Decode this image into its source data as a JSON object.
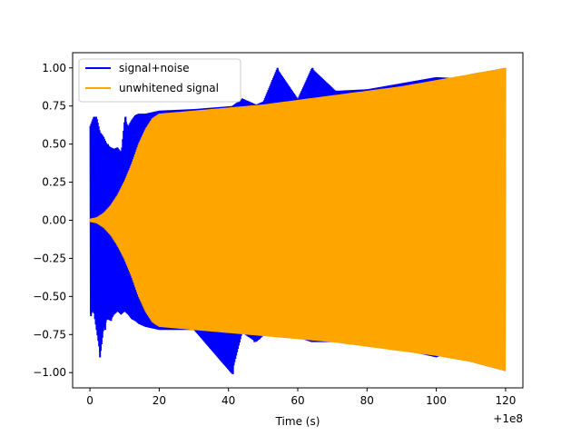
{
  "chart_data": {
    "type": "line",
    "title": "",
    "xlabel": "Time (s)",
    "ylabel": "",
    "x_offset_label": "+1e8",
    "xlim": [
      -5,
      125
    ],
    "ylim": [
      -1.1,
      1.1
    ],
    "x_ticks": [
      {
        "value": 0,
        "label": "0"
      },
      {
        "value": 20,
        "label": "20"
      },
      {
        "value": 40,
        "label": "40"
      },
      {
        "value": 60,
        "label": "60"
      },
      {
        "value": 80,
        "label": "80"
      },
      {
        "value": 100,
        "label": "100"
      },
      {
        "value": 120,
        "label": "120"
      }
    ],
    "y_ticks": [
      {
        "value": 1.0,
        "label": "1.00"
      },
      {
        "value": 0.75,
        "label": "0.75"
      },
      {
        "value": 0.5,
        "label": "0.50"
      },
      {
        "value": 0.25,
        "label": "0.25"
      },
      {
        "value": 0.0,
        "label": "0.00"
      },
      {
        "value": -0.25,
        "label": "−0.25"
      },
      {
        "value": -0.5,
        "label": "−0.50"
      },
      {
        "value": -0.75,
        "label": "−0.75"
      },
      {
        "value": -1.0,
        "label": "−1.00"
      }
    ],
    "grid": false,
    "legend_position": "top-left",
    "series": [
      {
        "name": "signal+noise",
        "color": "#0000ff",
        "envelope": [
          {
            "x": 0,
            "lo": -0.62,
            "hi": 0.62
          },
          {
            "x": 1,
            "lo": -0.6,
            "hi": 0.68
          },
          {
            "x": 2,
            "lo": -0.75,
            "hi": 0.68
          },
          {
            "x": 3,
            "lo": -0.9,
            "hi": 0.58
          },
          {
            "x": 4,
            "lo": -0.72,
            "hi": 0.55
          },
          {
            "x": 5,
            "lo": -0.65,
            "hi": 0.5
          },
          {
            "x": 6,
            "lo": -0.66,
            "hi": 0.48
          },
          {
            "x": 7,
            "lo": -0.62,
            "hi": 0.47
          },
          {
            "x": 8,
            "lo": -0.6,
            "hi": 0.48
          },
          {
            "x": 9,
            "lo": -0.62,
            "hi": 0.45
          },
          {
            "x": 10,
            "lo": -0.6,
            "hi": 0.68
          },
          {
            "x": 11,
            "lo": -0.62,
            "hi": 0.62
          },
          {
            "x": 12,
            "lo": -0.65,
            "hi": 0.66
          },
          {
            "x": 13,
            "lo": -0.66,
            "hi": 0.69
          },
          {
            "x": 14,
            "lo": -0.68,
            "hi": 0.7
          },
          {
            "x": 16,
            "lo": -0.7,
            "hi": 0.7
          },
          {
            "x": 20,
            "lo": -0.72,
            "hi": 0.72
          },
          {
            "x": 30,
            "lo": -0.72,
            "hi": 0.73
          },
          {
            "x": 41,
            "lo": -1.01,
            "hi": 0.75
          },
          {
            "x": 44,
            "lo": -0.74,
            "hi": 0.8
          },
          {
            "x": 48,
            "lo": -0.8,
            "hi": 0.76
          },
          {
            "x": 50,
            "lo": -0.76,
            "hi": 0.78
          },
          {
            "x": 54,
            "lo": -0.75,
            "hi": 1.0
          },
          {
            "x": 60,
            "lo": -0.77,
            "hi": 0.8
          },
          {
            "x": 64,
            "lo": -0.8,
            "hi": 1.0
          },
          {
            "x": 71,
            "lo": -0.8,
            "hi": 0.85
          },
          {
            "x": 80,
            "lo": -0.82,
            "hi": 0.86
          },
          {
            "x": 90,
            "lo": -0.85,
            "hi": 0.9
          },
          {
            "x": 100,
            "lo": -0.9,
            "hi": 0.94
          },
          {
            "x": 108,
            "lo": -0.84,
            "hi": 0.93
          },
          {
            "x": 110,
            "lo": -0.93,
            "hi": 0.96
          },
          {
            "x": 120,
            "lo": -0.99,
            "hi": 1.0
          }
        ]
      },
      {
        "name": "unwhitened signal",
        "color": "#ffa500",
        "envelope": [
          {
            "x": 0,
            "lo": -0.01,
            "hi": 0.01
          },
          {
            "x": 2,
            "lo": -0.02,
            "hi": 0.02
          },
          {
            "x": 4,
            "lo": -0.05,
            "hi": 0.05
          },
          {
            "x": 6,
            "lo": -0.1,
            "hi": 0.1
          },
          {
            "x": 8,
            "lo": -0.17,
            "hi": 0.17
          },
          {
            "x": 10,
            "lo": -0.26,
            "hi": 0.26
          },
          {
            "x": 12,
            "lo": -0.37,
            "hi": 0.37
          },
          {
            "x": 14,
            "lo": -0.5,
            "hi": 0.5
          },
          {
            "x": 16,
            "lo": -0.6,
            "hi": 0.6
          },
          {
            "x": 18,
            "lo": -0.67,
            "hi": 0.67
          },
          {
            "x": 20,
            "lo": -0.7,
            "hi": 0.7
          },
          {
            "x": 30,
            "lo": -0.72,
            "hi": 0.72
          },
          {
            "x": 40,
            "lo": -0.74,
            "hi": 0.74
          },
          {
            "x": 50,
            "lo": -0.76,
            "hi": 0.76
          },
          {
            "x": 60,
            "lo": -0.78,
            "hi": 0.79
          },
          {
            "x": 70,
            "lo": -0.8,
            "hi": 0.82
          },
          {
            "x": 80,
            "lo": -0.83,
            "hi": 0.85
          },
          {
            "x": 90,
            "lo": -0.86,
            "hi": 0.88
          },
          {
            "x": 100,
            "lo": -0.89,
            "hi": 0.92
          },
          {
            "x": 110,
            "lo": -0.93,
            "hi": 0.96
          },
          {
            "x": 120,
            "lo": -0.99,
            "hi": 1.0
          }
        ]
      }
    ],
    "noise_spikes": [
      {
        "x": 0.3,
        "lo": -0.63,
        "hi": 0.52
      },
      {
        "x": 0.8,
        "lo": -0.5,
        "hi": 0.63
      },
      {
        "x": 1.3,
        "lo": -0.45,
        "hi": 0.68
      },
      {
        "x": 2.0,
        "lo": -0.55,
        "hi": 0.6
      },
      {
        "x": 2.9,
        "lo": -0.9,
        "hi": 0.5
      },
      {
        "x": 3.6,
        "lo": -0.55,
        "hi": 0.46
      },
      {
        "x": 4.4,
        "lo": -0.72,
        "hi": 0.42
      },
      {
        "x": 5.2,
        "lo": -0.5,
        "hi": 0.5
      },
      {
        "x": 6.1,
        "lo": -0.66,
        "hi": 0.4
      },
      {
        "x": 7.0,
        "lo": -0.45,
        "hi": 0.47
      },
      {
        "x": 7.8,
        "lo": -0.55,
        "hi": 0.38
      },
      {
        "x": 8.7,
        "lo": -0.6,
        "hi": 0.35
      },
      {
        "x": 9.5,
        "lo": -0.5,
        "hi": 0.45
      },
      {
        "x": 10.3,
        "lo": -0.55,
        "hi": 0.68
      },
      {
        "x": 11.4,
        "lo": -0.58,
        "hi": 0.55
      },
      {
        "x": 12.3,
        "lo": -0.62,
        "hi": 0.62
      },
      {
        "x": 13.0,
        "lo": -0.66,
        "hi": 0.66
      },
      {
        "x": 41.3,
        "lo": -1.01,
        "hi": 0.74
      },
      {
        "x": 44.0,
        "lo": -0.73,
        "hi": 0.8
      },
      {
        "x": 47.5,
        "lo": -0.8,
        "hi": 0.75
      },
      {
        "x": 49.0,
        "lo": -0.78,
        "hi": 0.76
      },
      {
        "x": 54.2,
        "lo": -0.75,
        "hi": 1.0
      },
      {
        "x": 64.3,
        "lo": -0.79,
        "hi": 1.0
      },
      {
        "x": 71.2,
        "lo": -0.8,
        "hi": 0.85
      },
      {
        "x": 108.4,
        "lo": -0.84,
        "hi": 0.93
      }
    ]
  }
}
